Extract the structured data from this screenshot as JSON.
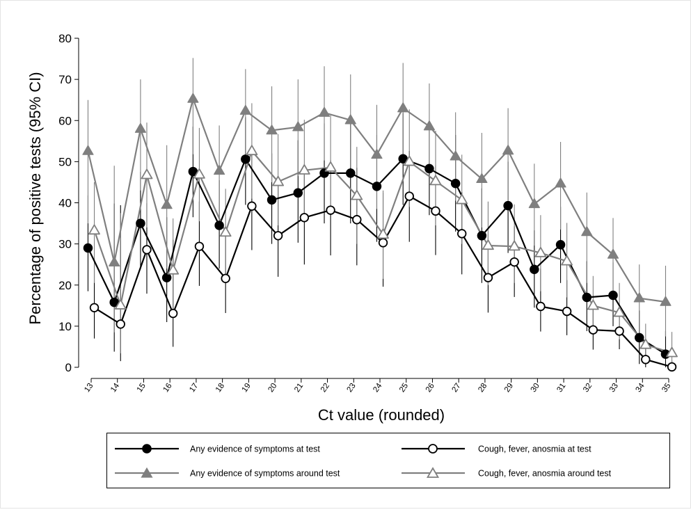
{
  "chart_data": {
    "type": "line",
    "xlabel": "Ct value (rounded)",
    "ylabel": "Percentage of positive tests (95% CI)",
    "x": [
      13,
      14,
      15,
      16,
      17,
      18,
      19,
      20,
      21,
      22,
      23,
      24,
      25,
      26,
      27,
      28,
      29,
      30,
      31,
      32,
      33,
      34,
      35
    ],
    "ylim": [
      0,
      80
    ],
    "yticks": [
      0,
      10,
      20,
      30,
      40,
      50,
      60,
      70,
      80
    ],
    "grid": false,
    "legend_position": "bottom",
    "series": [
      {
        "name": "Any evidence of symptoms at test",
        "color": "#000000",
        "marker": "filled-circle",
        "offset": -0.12,
        "values": [
          29,
          15.8,
          35,
          21.8,
          47.6,
          34.5,
          50.6,
          40.7,
          42.4,
          47.2,
          47.2,
          44,
          50.7,
          48.3,
          44.7,
          32,
          39.3,
          23.8,
          29.8,
          17,
          17.5,
          7.2,
          3.2
        ],
        "ci_low": [
          18.5,
          3.8,
          23.8,
          11,
          36.5,
          24,
          39.5,
          30,
          30.3,
          35,
          35,
          30.5,
          39.5,
          37,
          33,
          20.5,
          27.8,
          14.5,
          20.5,
          8.8,
          10,
          0.8,
          0
        ],
        "ci_high": [
          41.8,
          39.8,
          47.5,
          36.5,
          58.5,
          45.5,
          60.8,
          52,
          55.2,
          59.3,
          59.3,
          56.5,
          61.8,
          59.3,
          56.5,
          43.5,
          50,
          33.3,
          39,
          25.8,
          25.5,
          13.8,
          8.8
        ]
      },
      {
        "name": "Cough, fever, anosmia at test",
        "color": "#000000",
        "marker": "open-circle",
        "offset": 0.12,
        "values": [
          14.5,
          10.5,
          28.6,
          13.1,
          29.4,
          21.6,
          39.2,
          32,
          36.4,
          38.2,
          35.9,
          30.3,
          41.6,
          38,
          32.5,
          21.8,
          25.6,
          14.8,
          13.6,
          9.1,
          8.8,
          1.9,
          0.1
        ],
        "ci_low": [
          7,
          1.5,
          17.9,
          5,
          19.8,
          13.2,
          28.5,
          22,
          25,
          27.2,
          24.8,
          19.6,
          30.5,
          27.3,
          22.6,
          13.3,
          17.1,
          8.7,
          7.8,
          4.3,
          4.4,
          0,
          0
        ],
        "ci_high": [
          25,
          39.4,
          39.9,
          31,
          40.3,
          32.6,
          52.3,
          45.5,
          48.5,
          50.4,
          48.5,
          42.4,
          52.6,
          49,
          42.6,
          32.4,
          34.3,
          24,
          21.2,
          14.8,
          13.5,
          6.5,
          1.7
        ]
      },
      {
        "name": "Any evidence of symptoms around test",
        "color": "#7f7f7f",
        "marker": "filled-triangle",
        "offset": -0.12,
        "values": [
          52.6,
          25.5,
          58,
          39.5,
          65.3,
          47.8,
          62.4,
          57.6,
          58.4,
          61.9,
          60.1,
          51.7,
          63,
          58.6,
          51.3,
          45.8,
          52.7,
          39.7,
          44.7,
          32.9,
          27.4,
          16.8,
          15.9
        ],
        "ci_low": [
          35,
          8.5,
          43,
          24,
          51.8,
          35,
          51,
          45,
          46.5,
          50.3,
          48.5,
          38.5,
          51.3,
          47.3,
          40.5,
          34,
          40,
          29.6,
          33.5,
          20.5,
          16.5,
          8,
          7.5
        ],
        "ci_high": [
          65,
          49,
          70,
          54,
          75.2,
          58.8,
          72.5,
          68.3,
          70,
          73.2,
          71.2,
          63.8,
          74,
          69,
          62,
          57,
          63,
          49.5,
          54.8,
          42.5,
          36.3,
          25,
          24.7
        ]
      },
      {
        "name": "Cough, fever, anosmia around test",
        "color": "#7f7f7f",
        "marker": "open-triangle",
        "offset": 0.12,
        "values": [
          33.3,
          15.1,
          46.8,
          23.6,
          46.9,
          32.8,
          52.6,
          45.1,
          47.9,
          48.6,
          41.7,
          32.3,
          50,
          45.3,
          40.7,
          29.6,
          29.4,
          27.8,
          25.8,
          15,
          13.3,
          5.5,
          3.5
        ],
        "ci_low": [
          20.5,
          3.4,
          34,
          13.5,
          35.5,
          22.5,
          41,
          34.5,
          36.5,
          37.5,
          30,
          21.5,
          39,
          34.5,
          30,
          20,
          20.5,
          18.5,
          17,
          8.5,
          6.8,
          0.8,
          0
        ],
        "ci_high": [
          45,
          37.5,
          59.5,
          36.2,
          58.2,
          43.4,
          64.2,
          56.7,
          60.2,
          61.3,
          53.6,
          43,
          62.7,
          57.5,
          51.7,
          40.3,
          39.6,
          37,
          35.1,
          22.2,
          20.5,
          10.6,
          8.6
        ]
      }
    ]
  }
}
